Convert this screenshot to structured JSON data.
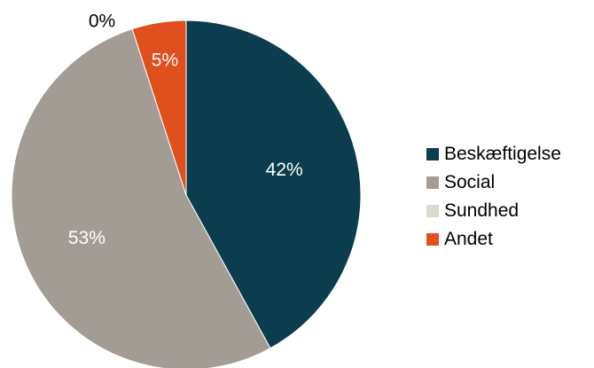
{
  "chart_data": {
    "type": "pie",
    "title": "",
    "slices": [
      {
        "name": "Beskæftigelse",
        "value": 42,
        "label": "42%",
        "color": "#0b3d4e",
        "label_color": "#ffffff"
      },
      {
        "name": "Social",
        "value": 53,
        "label": "53%",
        "color": "#a39c95",
        "label_color": "#ffffff"
      },
      {
        "name": "Sundhed",
        "value": 0,
        "label": "0%",
        "color": "#ddd9cf",
        "label_color": "#000000"
      },
      {
        "name": "Andet",
        "value": 5,
        "label": "5%",
        "color": "#e0501e",
        "label_color": "#ffffff"
      }
    ],
    "legend_position": "right"
  }
}
